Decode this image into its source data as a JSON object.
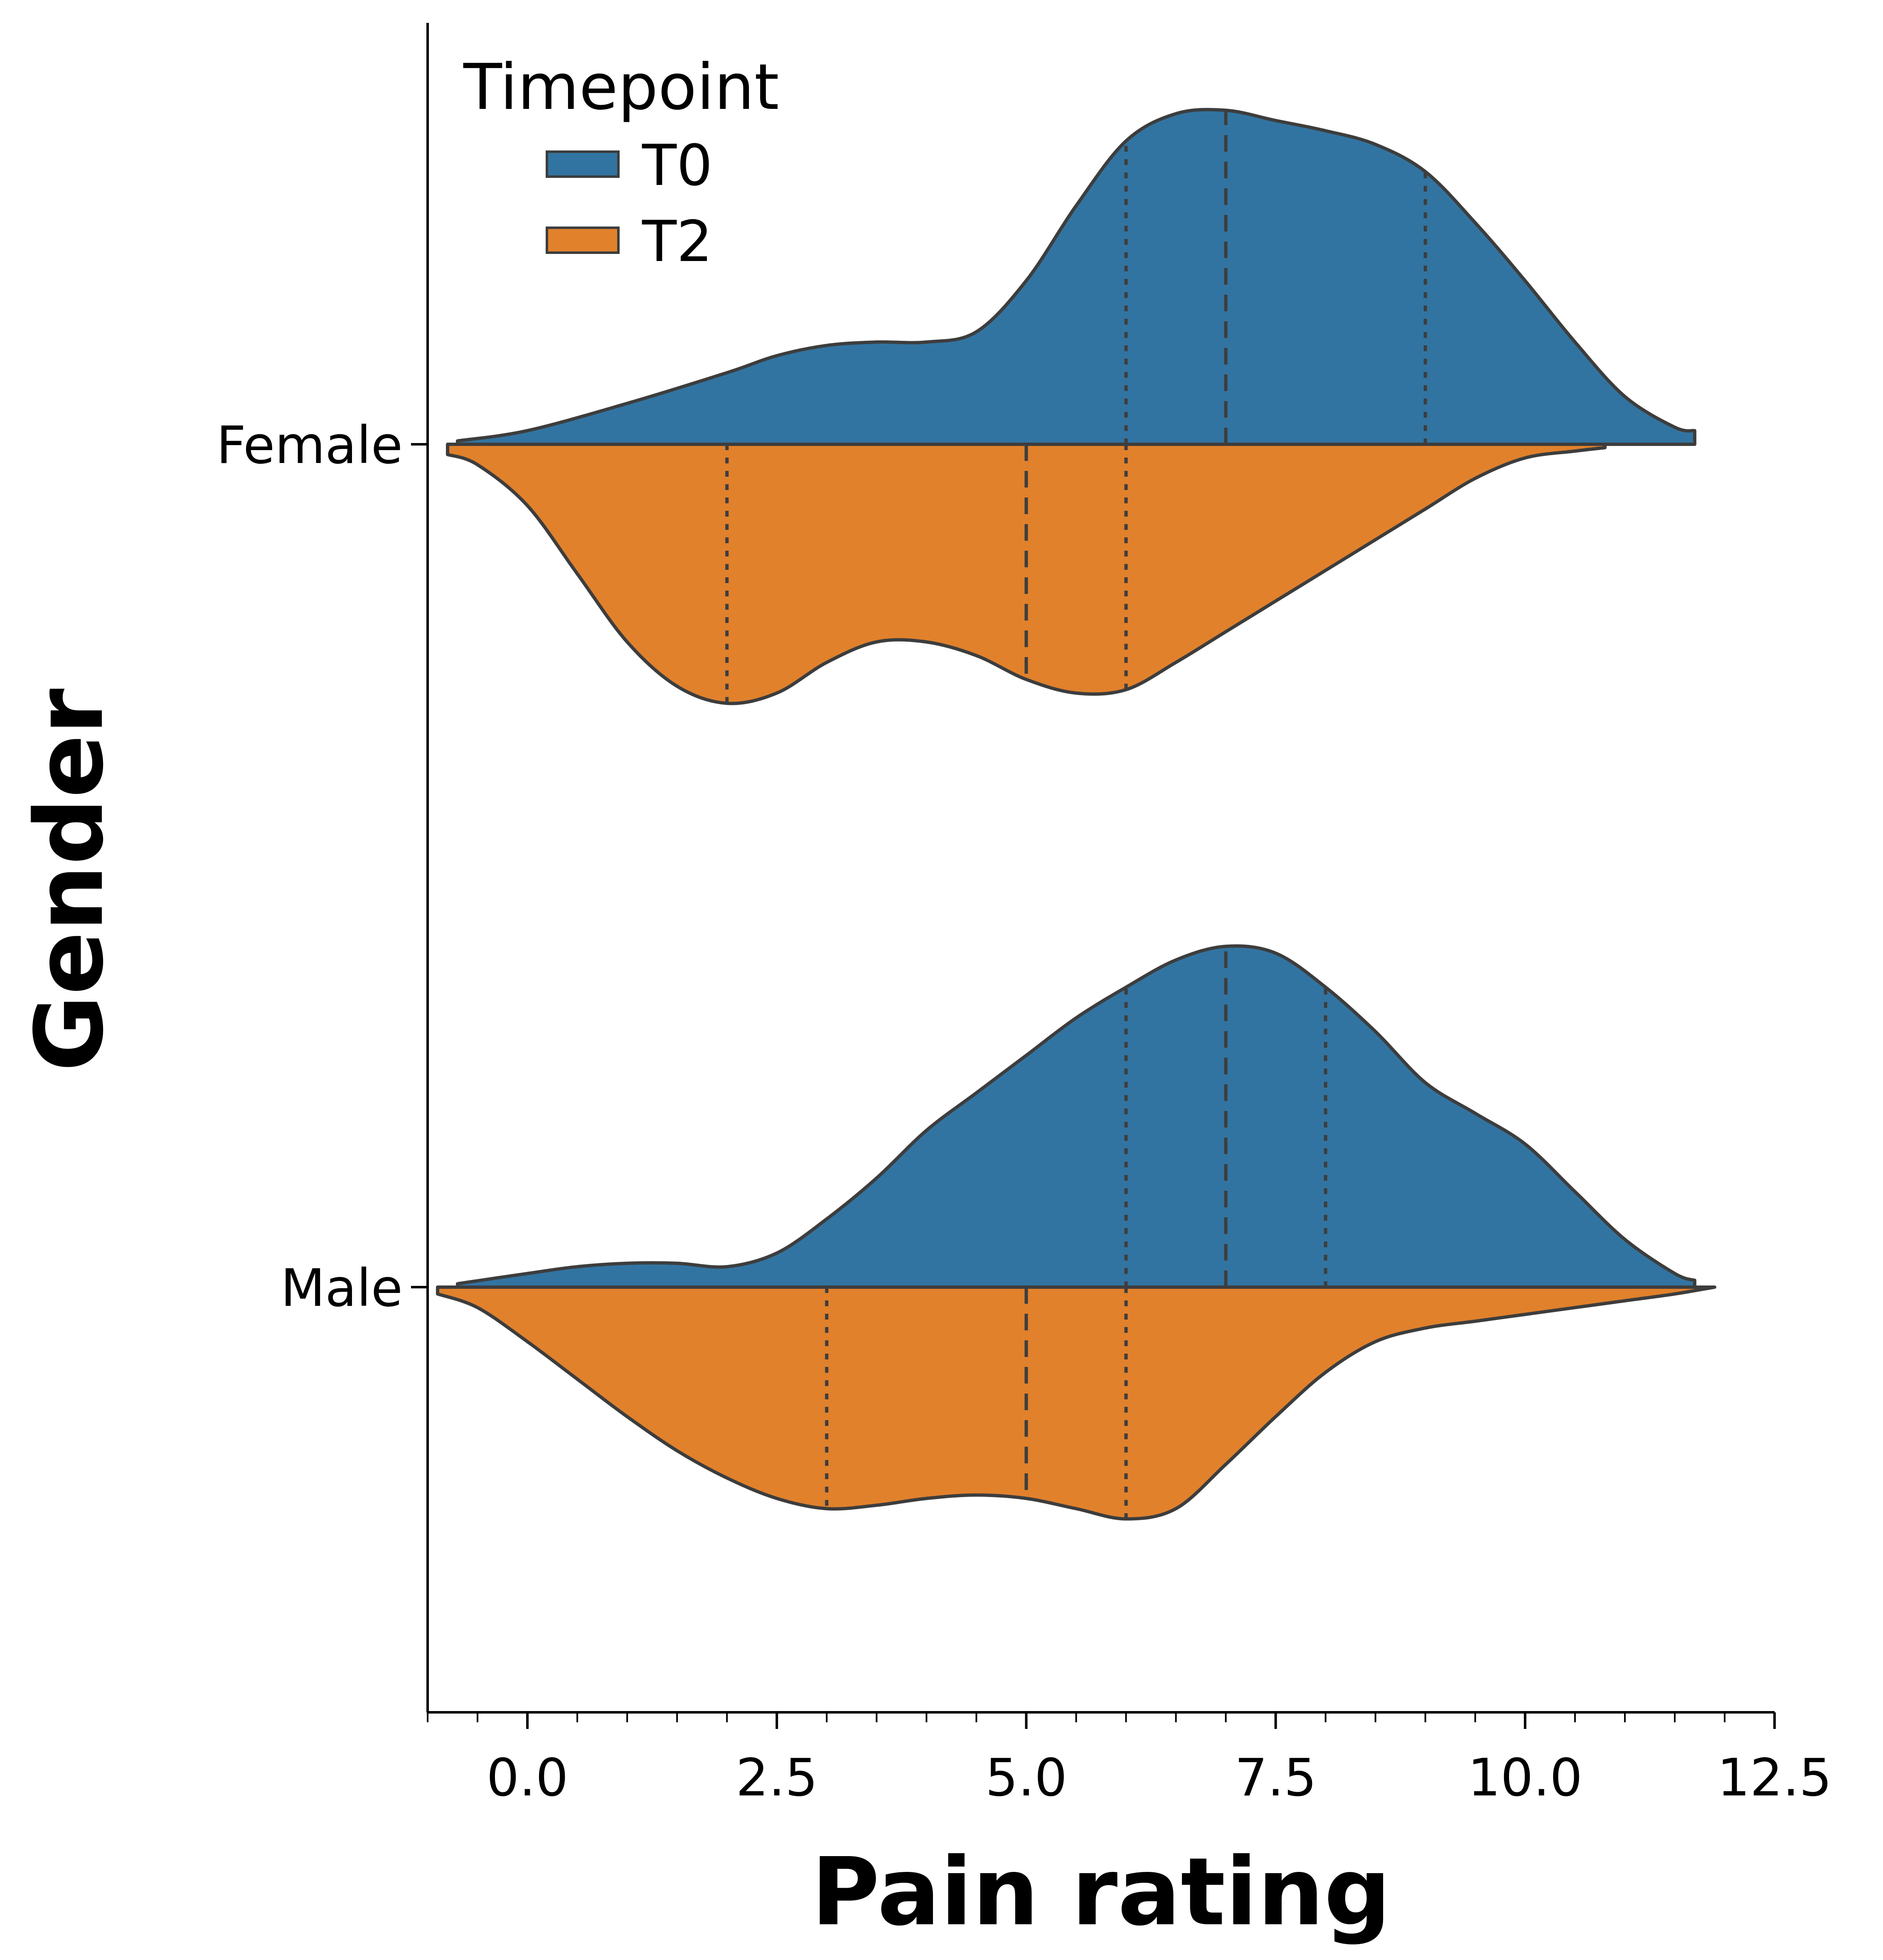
{
  "chart_data": {
    "type": "violin",
    "orientation": "horizontal",
    "split": true,
    "xlabel": "Pain rating",
    "ylabel": "Gender",
    "xlim": [
      -1.0,
      12.5
    ],
    "xticks": [
      0.0,
      2.5,
      5.0,
      7.5,
      10.0,
      12.5
    ],
    "xtick_labels": [
      "0.0",
      "2.5",
      "5.0",
      "7.5",
      "10.0",
      "12.5"
    ],
    "x_minor_step": 0.5,
    "categories": [
      "Female",
      "Male"
    ],
    "legend": {
      "title": "Timepoint",
      "position": "top-left",
      "entries": [
        "T0",
        "T2"
      ]
    },
    "inner": "quartile",
    "series": [
      {
        "name": "T0",
        "side": "upper",
        "color": "#3274a1",
        "violins": [
          {
            "category": "Female",
            "quartiles": {
              "q1": 6,
              "median": 7,
              "q3": 9
            },
            "density_profile": [
              [
                -0.7,
                0.01
              ],
              [
                0.0,
                0.04
              ],
              [
                1.0,
                0.12
              ],
              [
                2.0,
                0.21
              ],
              [
                2.5,
                0.26
              ],
              [
                3.0,
                0.29
              ],
              [
                3.5,
                0.3
              ],
              [
                4.0,
                0.3
              ],
              [
                4.5,
                0.33
              ],
              [
                5.0,
                0.48
              ],
              [
                5.5,
                0.7
              ],
              [
                6.0,
                0.89
              ],
              [
                6.5,
                0.97
              ],
              [
                7.0,
                0.98
              ],
              [
                7.5,
                0.95
              ],
              [
                8.0,
                0.92
              ],
              [
                8.5,
                0.88
              ],
              [
                9.0,
                0.8
              ],
              [
                9.5,
                0.65
              ],
              [
                10.0,
                0.48
              ],
              [
                10.5,
                0.3
              ],
              [
                11.0,
                0.14
              ],
              [
                11.5,
                0.05
              ],
              [
                11.7,
                0.04
              ]
            ]
          },
          {
            "category": "Male",
            "quartiles": {
              "q1": 6,
              "median": 7,
              "q3": 8
            },
            "density_profile": [
              [
                -0.7,
                0.01
              ],
              [
                0.0,
                0.04
              ],
              [
                0.5,
                0.06
              ],
              [
                1.0,
                0.07
              ],
              [
                1.5,
                0.07
              ],
              [
                2.0,
                0.06
              ],
              [
                2.5,
                0.1
              ],
              [
                3.0,
                0.2
              ],
              [
                3.5,
                0.32
              ],
              [
                4.0,
                0.46
              ],
              [
                4.5,
                0.57
              ],
              [
                5.0,
                0.68
              ],
              [
                5.5,
                0.79
              ],
              [
                6.0,
                0.88
              ],
              [
                6.5,
                0.96
              ],
              [
                7.0,
                1.0
              ],
              [
                7.5,
                0.98
              ],
              [
                8.0,
                0.88
              ],
              [
                8.5,
                0.75
              ],
              [
                9.0,
                0.6
              ],
              [
                9.5,
                0.51
              ],
              [
                10.0,
                0.42
              ],
              [
                10.5,
                0.28
              ],
              [
                11.0,
                0.14
              ],
              [
                11.5,
                0.04
              ],
              [
                11.7,
                0.02
              ]
            ]
          }
        ]
      },
      {
        "name": "T2",
        "side": "lower",
        "color": "#e1812c",
        "violins": [
          {
            "category": "Female",
            "quartiles": {
              "q1": 2,
              "median": 5,
              "q3": 6
            },
            "density_profile": [
              [
                -0.8,
                0.03
              ],
              [
                -0.5,
                0.06
              ],
              [
                0.0,
                0.18
              ],
              [
                0.5,
                0.38
              ],
              [
                1.0,
                0.58
              ],
              [
                1.5,
                0.71
              ],
              [
                2.0,
                0.76
              ],
              [
                2.5,
                0.73
              ],
              [
                3.0,
                0.64
              ],
              [
                3.5,
                0.58
              ],
              [
                4.0,
                0.58
              ],
              [
                4.5,
                0.62
              ],
              [
                5.0,
                0.69
              ],
              [
                5.5,
                0.73
              ],
              [
                6.0,
                0.72
              ],
              [
                6.5,
                0.64
              ],
              [
                7.0,
                0.55
              ],
              [
                7.5,
                0.46
              ],
              [
                8.0,
                0.37
              ],
              [
                8.5,
                0.28
              ],
              [
                9.0,
                0.19
              ],
              [
                9.5,
                0.1
              ],
              [
                10.0,
                0.04
              ],
              [
                10.5,
                0.02
              ],
              [
                10.8,
                0.01
              ]
            ]
          },
          {
            "category": "Male",
            "quartiles": {
              "q1": 3,
              "median": 5,
              "q3": 6
            },
            "density_profile": [
              [
                -0.9,
                0.02
              ],
              [
                -0.5,
                0.06
              ],
              [
                0.0,
                0.16
              ],
              [
                0.5,
                0.27
              ],
              [
                1.0,
                0.38
              ],
              [
                1.5,
                0.48
              ],
              [
                2.0,
                0.56
              ],
              [
                2.5,
                0.62
              ],
              [
                3.0,
                0.65
              ],
              [
                3.5,
                0.64
              ],
              [
                4.0,
                0.62
              ],
              [
                4.5,
                0.61
              ],
              [
                5.0,
                0.62
              ],
              [
                5.5,
                0.65
              ],
              [
                6.0,
                0.68
              ],
              [
                6.5,
                0.65
              ],
              [
                7.0,
                0.52
              ],
              [
                7.5,
                0.38
              ],
              [
                8.0,
                0.25
              ],
              [
                8.5,
                0.16
              ],
              [
                9.0,
                0.12
              ],
              [
                9.5,
                0.1
              ],
              [
                10.0,
                0.08
              ],
              [
                10.5,
                0.06
              ],
              [
                11.0,
                0.04
              ],
              [
                11.5,
                0.02
              ],
              [
                11.9,
                0.0
              ]
            ]
          }
        ]
      }
    ]
  }
}
